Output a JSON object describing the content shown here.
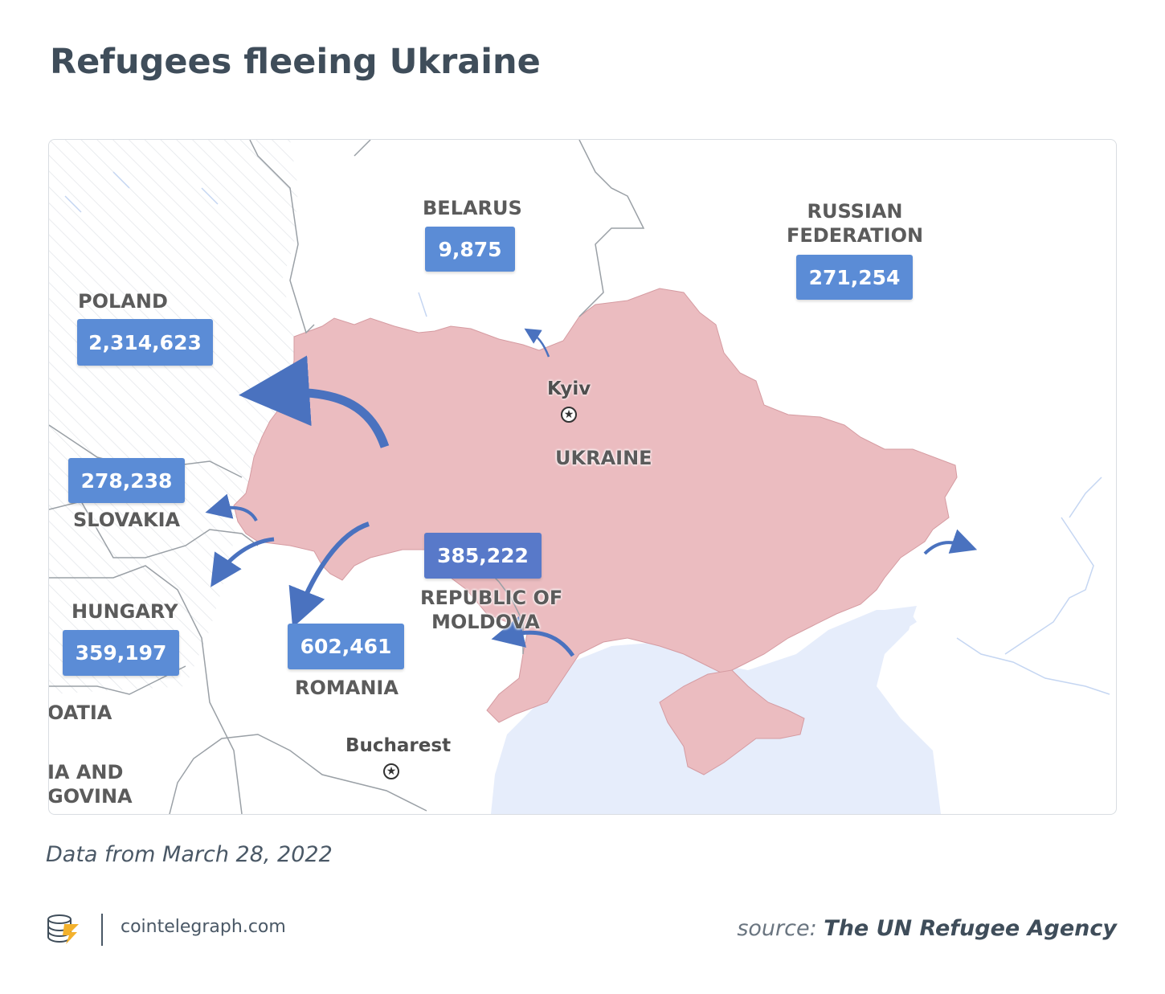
{
  "title": "Refugees fleeing Ukraine",
  "map": {
    "countries": {
      "belarus": "BELARUS",
      "russia_line1": "RUSSIAN",
      "russia_line2": "FEDERATION",
      "poland": "POLAND",
      "slovakia": "SLOVAKIA",
      "hungary": "HUNGARY",
      "ukraine": "UKRAINE",
      "moldova_line1": "REPUBLIC OF",
      "moldova_line2": "MOLDOVA",
      "romania": "ROMANIA",
      "croatia_partial": "OATIA",
      "bosnia_line1": "IA AND",
      "bosnia_line2": "GOVINA"
    },
    "cities": {
      "kyiv": "Kyiv",
      "bucharest": "Bucharest"
    },
    "refugee_counts": {
      "belarus": "9,875",
      "russia": "271,254",
      "poland": "2,314,623",
      "slovakia": "278,238",
      "hungary": "359,197",
      "romania": "602,461",
      "moldova": "385,222"
    },
    "colors": {
      "ukraine_fill": "#ebbcc0",
      "count_box": "#5b8cd6",
      "arrow": "#4a72bf",
      "sea": "#e6edfb",
      "hatch": "#e2e6ea",
      "border_line": "#9aa0a6"
    },
    "icons": {
      "capital_marker": "star-in-circle",
      "flow_arrow": "curved-arrow"
    }
  },
  "note": "Data from March 28, 2022",
  "footer": {
    "site": "cointelegraph.com",
    "source_prefix": "source:",
    "source_name": "The UN Refugee Agency",
    "logo_icon": "cointelegraph-logo-icon"
  }
}
